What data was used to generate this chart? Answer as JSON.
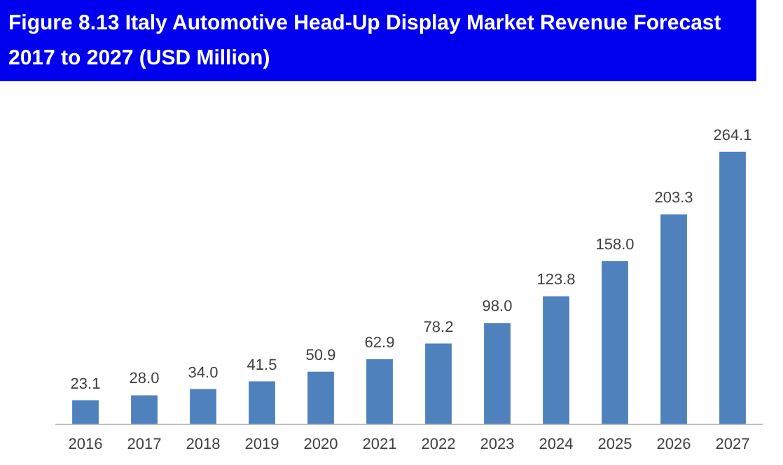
{
  "chart_data": {
    "type": "bar",
    "title": "Figure 8.13 Italy Automotive Head-Up Display Market Revenue Forecast 2017 to 2027 (USD Million)",
    "categories": [
      "2016",
      "2017",
      "2018",
      "2019",
      "2020",
      "2021",
      "2022",
      "2023",
      "2024",
      "2025",
      "2026",
      "2027"
    ],
    "values": [
      23.1,
      28.0,
      34.0,
      41.5,
      50.9,
      62.9,
      78.2,
      98.0,
      123.8,
      158.0,
      203.3,
      264.1
    ],
    "value_labels": [
      "23.1",
      "28.0",
      "34.0",
      "41.5",
      "50.9",
      "62.9",
      "78.2",
      "98.0",
      "123.8",
      "158.0",
      "203.3",
      "264.1"
    ],
    "color": "#4f81bd",
    "grid": false,
    "legend": false,
    "tick_labels": "x"
  }
}
